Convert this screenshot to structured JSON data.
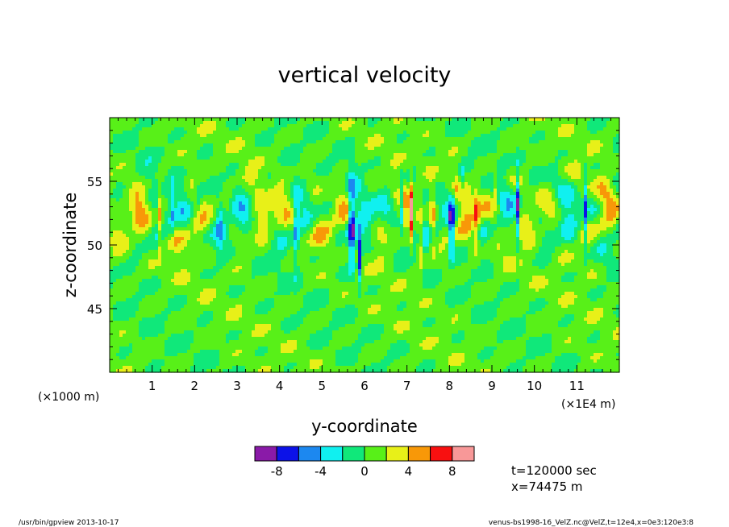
{
  "chart_data": {
    "type": "heatmap",
    "title": "vertical velocity",
    "xlabel": "y-coordinate",
    "ylabel": "z-coordinate",
    "x_unit_left": "(×1000 m)",
    "x_unit_right": "(×1E4 m)",
    "xlim": [
      0,
      120000
    ],
    "ylim": [
      40,
      60
    ],
    "x_ticks": [
      1,
      2,
      3,
      4,
      5,
      6,
      7,
      8,
      9,
      10,
      11
    ],
    "x_tick_labels": [
      "1",
      "2",
      "3",
      "4",
      "5",
      "6",
      "7",
      "8",
      "9",
      "10",
      "11"
    ],
    "y_ticks": [
      45,
      50,
      55
    ],
    "y_tick_labels": [
      "45",
      "50",
      "55"
    ],
    "colorbar": {
      "bins": [
        -10,
        -8,
        -6,
        -4,
        -2,
        0,
        2,
        4,
        6,
        8,
        10
      ],
      "colors": [
        "#8a1aa8",
        "#0c12e8",
        "#1c88f0",
        "#10f0f0",
        "#10e87a",
        "#58f018",
        "#e8f018",
        "#f89808",
        "#f81010",
        "#f89898"
      ],
      "tick_values": [
        -8,
        -4,
        0,
        4,
        8
      ],
      "tick_labels": [
        "-8",
        "-4",
        "0",
        "4",
        "8"
      ]
    },
    "features": [
      {
        "y": 14500,
        "z": 52.5,
        "w": -8,
        "sy": 300,
        "sz": 2.4
      },
      {
        "y": 12000,
        "z": 52.0,
        "w": 6,
        "sy": 450,
        "sz": 2.5
      },
      {
        "y": 44000,
        "z": 51.0,
        "w": -8,
        "sy": 380,
        "sz": 3.0
      },
      {
        "y": 57000,
        "z": 51.5,
        "w": -9,
        "sy": 900,
        "sz": 3.2
      },
      {
        "y": 59000,
        "z": 49.0,
        "w": -10,
        "sy": 400,
        "sz": 2.0
      },
      {
        "y": 68500,
        "z": 53.0,
        "w": -9,
        "sy": 350,
        "sz": 2.0
      },
      {
        "y": 71000,
        "z": 52.5,
        "w": 6,
        "sy": 350,
        "sz": 2.5
      },
      {
        "y": 73000,
        "z": 50.5,
        "w": 6,
        "sy": 450,
        "sz": 2.5
      },
      {
        "y": 76000,
        "z": 52.0,
        "w": 6,
        "sy": 450,
        "sz": 2.3
      },
      {
        "y": 80500,
        "z": 51.5,
        "w": -8,
        "sy": 650,
        "sz": 2.3
      },
      {
        "y": 86500,
        "z": 52.0,
        "w": 5,
        "sy": 450,
        "sz": 3.0
      },
      {
        "y": 91000,
        "z": 54.5,
        "w": 6,
        "sy": 300,
        "sz": 1.2
      },
      {
        "y": 96000,
        "z": 53.0,
        "w": -8,
        "sy": 400,
        "sz": 2.8
      },
      {
        "y": 112000,
        "z": 52.5,
        "w": -6,
        "sy": 250,
        "sz": 3.0
      },
      {
        "y": 21000,
        "z": 54.0,
        "w": -3,
        "sy": 1000,
        "sz": 1.4
      },
      {
        "y": 26000,
        "z": 52.0,
        "w": -3,
        "sy": 900,
        "sz": 2.2
      },
      {
        "y": 83000,
        "z": 55.0,
        "w": -4,
        "sy": 600,
        "sz": 1.2
      }
    ]
  },
  "info": {
    "time_label": "t=120000 sec",
    "position_label": "x=74475 m"
  },
  "footer": {
    "left": "/usr/bin/gpview  2013-10-17",
    "right": "venus-bs1998-16_VelZ.nc@VelZ,t=12e4,x=0e3:120e3:8"
  }
}
